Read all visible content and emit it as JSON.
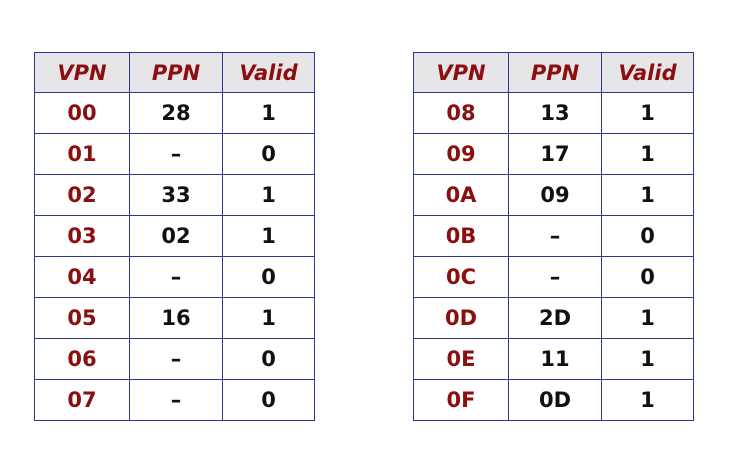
{
  "headers": {
    "vpn": "VPN",
    "ppn": "PPN",
    "valid": "Valid"
  },
  "left_table": [
    {
      "vpn": "00",
      "ppn": "28",
      "valid": "1"
    },
    {
      "vpn": "01",
      "ppn": "–",
      "valid": "0"
    },
    {
      "vpn": "02",
      "ppn": "33",
      "valid": "1"
    },
    {
      "vpn": "03",
      "ppn": "02",
      "valid": "1"
    },
    {
      "vpn": "04",
      "ppn": "–",
      "valid": "0"
    },
    {
      "vpn": "05",
      "ppn": "16",
      "valid": "1"
    },
    {
      "vpn": "06",
      "ppn": "–",
      "valid": "0"
    },
    {
      "vpn": "07",
      "ppn": "–",
      "valid": "0"
    }
  ],
  "right_table": [
    {
      "vpn": "08",
      "ppn": "13",
      "valid": "1"
    },
    {
      "vpn": "09",
      "ppn": "17",
      "valid": "1"
    },
    {
      "vpn": "0A",
      "ppn": "09",
      "valid": "1"
    },
    {
      "vpn": "0B",
      "ppn": "–",
      "valid": "0"
    },
    {
      "vpn": "0C",
      "ppn": "–",
      "valid": "0"
    },
    {
      "vpn": "0D",
      "ppn": "2D",
      "valid": "1"
    },
    {
      "vpn": "0E",
      "ppn": "11",
      "valid": "1"
    },
    {
      "vpn": "0F",
      "ppn": "0D",
      "valid": "1"
    }
  ],
  "colors": {
    "border": "#2b3a8c",
    "vpn_text": "#8b0f0f",
    "header_bg": "#e6e6e8",
    "value_text": "#111111"
  }
}
